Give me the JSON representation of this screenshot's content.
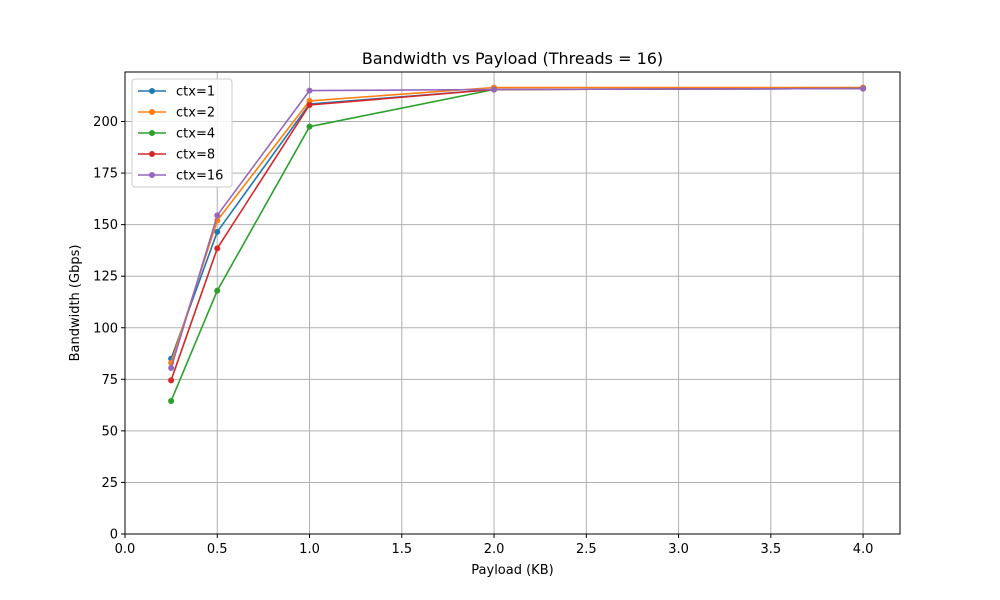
{
  "chart_data": {
    "type": "line",
    "title": "Bandwidth vs Payload (Threads = 16)",
    "xlabel": "Payload (KB)",
    "ylabel": "Bandwidth (Gbps)",
    "xlim": [
      0.0,
      4.2
    ],
    "ylim": [
      0,
      224
    ],
    "xticks": [
      0.0,
      0.5,
      1.0,
      1.5,
      2.0,
      2.5,
      3.0,
      3.5,
      4.0
    ],
    "xtick_labels": [
      "0.0",
      "0.5",
      "1.0",
      "1.5",
      "2.0",
      "2.5",
      "3.0",
      "3.5",
      "4.0"
    ],
    "yticks": [
      0,
      25,
      50,
      75,
      100,
      125,
      150,
      175,
      200
    ],
    "ytick_labels": [
      "0",
      "25",
      "50",
      "75",
      "100",
      "125",
      "150",
      "175",
      "200"
    ],
    "grid": true,
    "legend_position": "top-left",
    "x": [
      0.25,
      0.5,
      1.0,
      2.0,
      4.0
    ],
    "series": [
      {
        "name": "ctx=1",
        "color": "#1f77b4",
        "values": [
          85,
          146.5,
          208.5,
          215.5,
          216
        ]
      },
      {
        "name": "ctx=2",
        "color": "#ff7f0e",
        "values": [
          83,
          152,
          210,
          216.5,
          216.5
        ]
      },
      {
        "name": "ctx=4",
        "color": "#2ca02c",
        "values": [
          64.5,
          118,
          197.5,
          215.5,
          216
        ]
      },
      {
        "name": "ctx=8",
        "color": "#d62728",
        "values": [
          74.5,
          138.5,
          208,
          215.5,
          216
        ]
      },
      {
        "name": "ctx=16",
        "color": "#9467bd",
        "values": [
          80.5,
          154.5,
          215,
          215.5,
          216
        ]
      }
    ]
  }
}
